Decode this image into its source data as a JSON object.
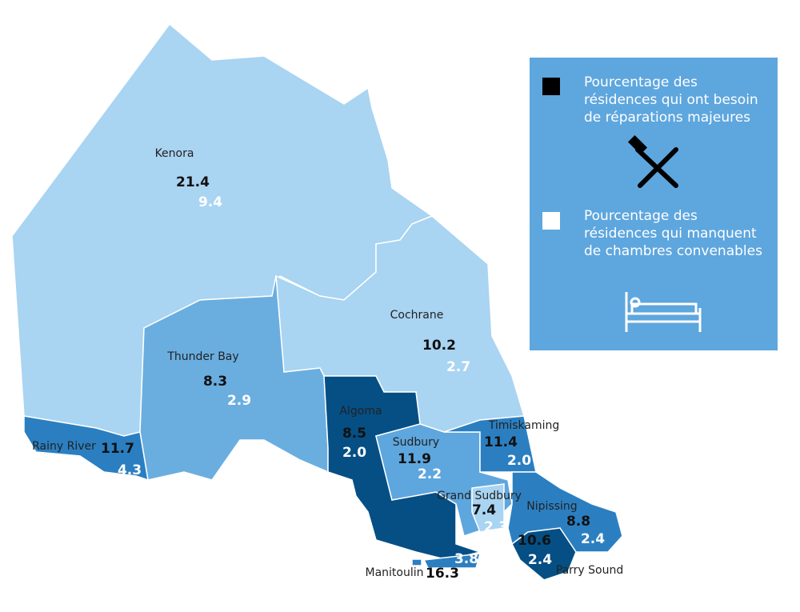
{
  "legend": {
    "repairs": "Pourcentage des résidences qui ont besoin de réparations majeures",
    "crowding": "Pourcentage des résidences qui manquent de chambres convenables"
  },
  "regions": [
    {
      "name": "Kenora",
      "repairs": "21.4",
      "crowding": "9.4"
    },
    {
      "name": "Cochrane",
      "repairs": "10.2",
      "crowding": "2.7"
    },
    {
      "name": "Thunder Bay",
      "repairs": "8.3",
      "crowding": "2.9"
    },
    {
      "name": "Rainy River",
      "repairs": "11.7",
      "crowding": "4.3"
    },
    {
      "name": "Algoma",
      "repairs": "8.5",
      "crowding": "2.0"
    },
    {
      "name": "Sudbury",
      "repairs": "11.9",
      "crowding": "2.2"
    },
    {
      "name": "Timiskaming",
      "repairs": "11.4",
      "crowding": "2.0"
    },
    {
      "name": "Grand Sudbury",
      "repairs": "7.4",
      "crowding": "2.3"
    },
    {
      "name": "Nipissing",
      "repairs": "8.8",
      "crowding": "2.4"
    },
    {
      "name": "Parry Sound",
      "repairs": "10.6",
      "crowding": "2.4"
    },
    {
      "name": "Manitoulin",
      "repairs": "16.3",
      "crowding": "3.8"
    }
  ]
}
